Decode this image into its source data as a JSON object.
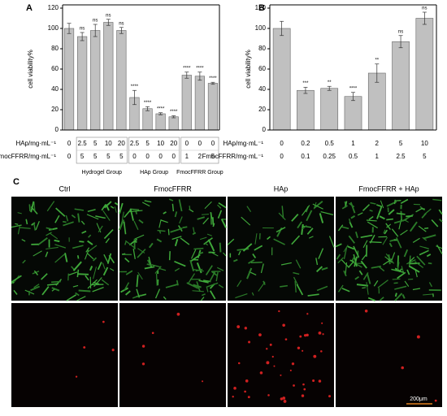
{
  "chart_data": [
    {
      "type": "bar",
      "panel": "A",
      "ylabel": "cell viability%",
      "color": "#c0c0c0",
      "ylim": [
        0,
        120
      ],
      "yticks": [
        0,
        20,
        40,
        60,
        80,
        100,
        120
      ],
      "values": [
        100,
        92,
        98,
        106,
        98,
        32,
        21,
        16,
        13,
        54,
        53,
        46
      ],
      "errors": [
        5,
        4,
        6,
        3,
        3,
        7,
        2,
        1,
        1,
        3,
        4,
        1
      ],
      "annotations": [
        null,
        "ns",
        "ns",
        "ns",
        "ns",
        "****",
        "****",
        "****",
        "****",
        "****",
        "****",
        "****"
      ],
      "row_labels": [
        "HAp/mg·mL⁻¹",
        "FmocFFRR/mg·mL⁻¹"
      ],
      "rows": [
        [
          0,
          2.5,
          5,
          10,
          20,
          2.5,
          5,
          10,
          20,
          0,
          0,
          0
        ],
        [
          0,
          5,
          5,
          5,
          5,
          0,
          0,
          0,
          0,
          1,
          2,
          5
        ]
      ],
      "groups": [
        "Hydrogel Group",
        "HAp Group",
        "FmocFFRR Group"
      ]
    },
    {
      "type": "bar",
      "panel": "B",
      "ylabel": "cell viability%",
      "color": "#c0c0c0",
      "ylim": [
        0,
        120
      ],
      "yticks": [
        0,
        20,
        40,
        60,
        80,
        100,
        120
      ],
      "values": [
        100,
        39,
        41,
        33,
        56,
        87,
        110
      ],
      "errors": [
        7,
        3,
        2,
        4,
        9,
        6,
        6
      ],
      "annotations": [
        null,
        "***",
        "**",
        "****",
        "**",
        "ns",
        "ns"
      ],
      "row_labels": [
        "HAp/mg·mL⁻¹",
        "FmocFFRR/mg·mL⁻¹"
      ],
      "rows": [
        [
          0,
          0.2,
          0.5,
          1,
          2,
          5,
          10
        ],
        [
          0,
          0.1,
          0.25,
          0.5,
          1,
          2.5,
          5
        ]
      ]
    }
  ],
  "image_panel": {
    "panel": "C",
    "columns": [
      "Ctrl",
      "FmocFFRR",
      "HAp",
      "FmocFFRR + HAp"
    ],
    "scale_bar": "200μm"
  }
}
